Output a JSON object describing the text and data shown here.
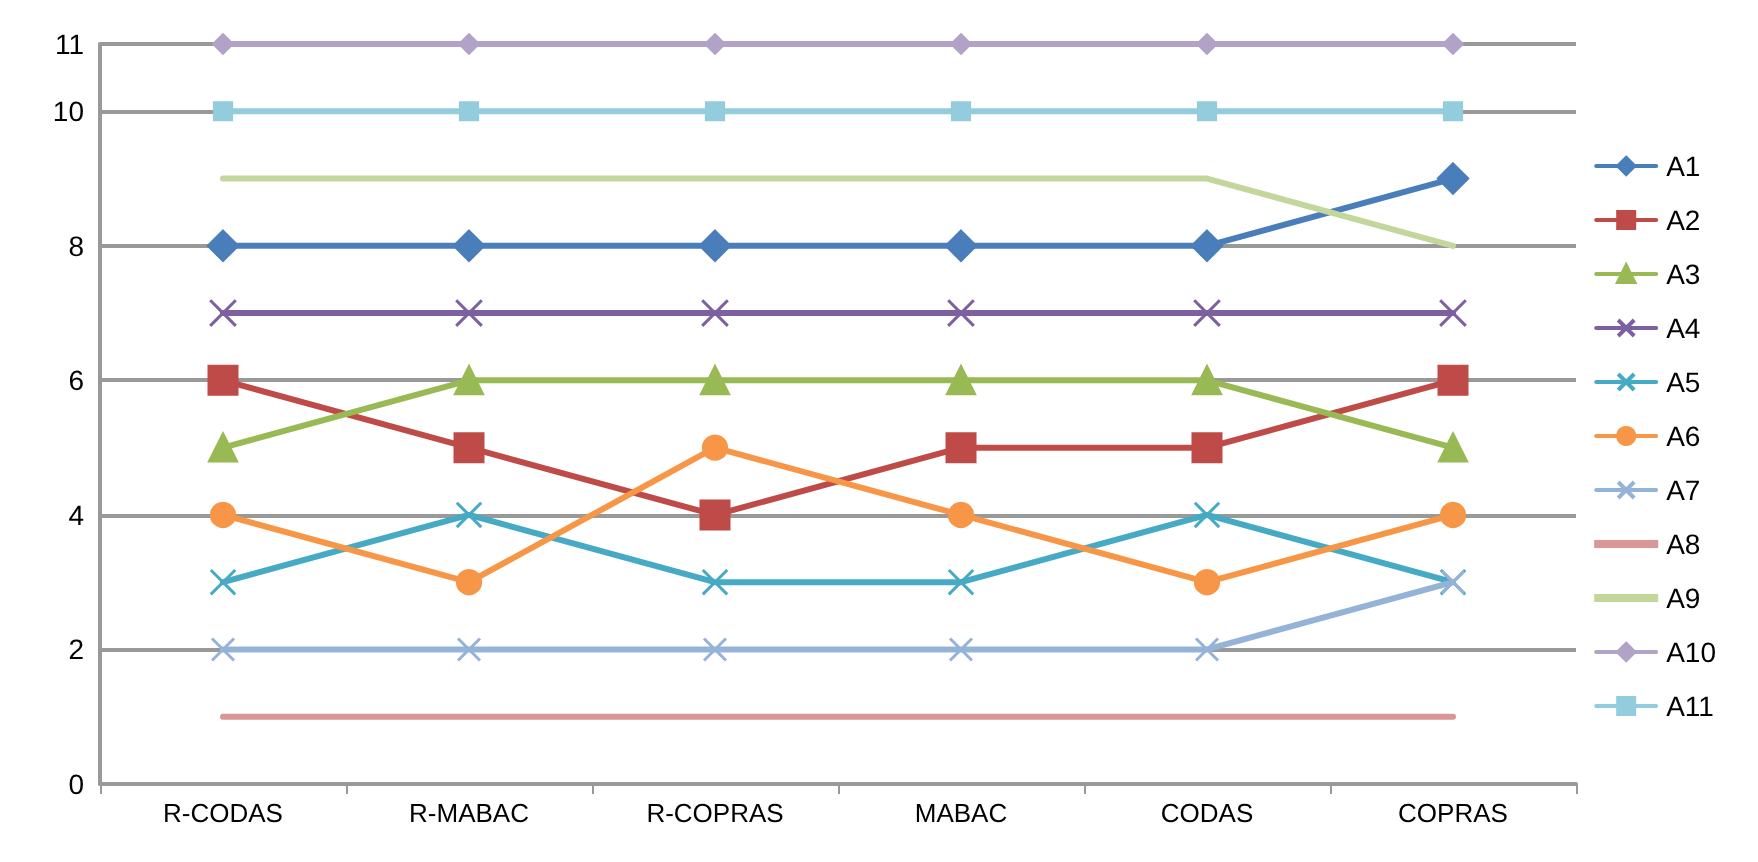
{
  "chart_data": {
    "type": "line",
    "categories": [
      "R-CODAS",
      "R-MABAC",
      "R-COPRAS",
      "MABAC",
      "CODAS",
      "COPRAS"
    ],
    "ylim": [
      0,
      11
    ],
    "yticks": [
      0,
      2,
      4,
      6,
      8,
      10,
      11
    ],
    "grid": "y",
    "legend": "right",
    "series": [
      {
        "name": "A1",
        "color": "#4a7ebb",
        "marker": "diamond",
        "values": [
          8,
          8,
          8,
          8,
          8,
          9
        ]
      },
      {
        "name": "A2",
        "color": "#be4b48",
        "marker": "square",
        "values": [
          6,
          5,
          4,
          5,
          5,
          6
        ]
      },
      {
        "name": "A3",
        "color": "#98b954",
        "marker": "triangle",
        "values": [
          5,
          6,
          6,
          6,
          6,
          5
        ]
      },
      {
        "name": "A4",
        "color": "#7d60a0",
        "marker": "cross",
        "values": [
          7,
          7,
          7,
          7,
          7,
          7
        ]
      },
      {
        "name": "A5",
        "color": "#46aac5",
        "marker": "cross",
        "values": [
          3,
          4,
          3,
          3,
          4,
          3
        ]
      },
      {
        "name": "A6",
        "color": "#f79646",
        "marker": "circle",
        "values": [
          4,
          3,
          5,
          4,
          3,
          4
        ]
      },
      {
        "name": "A7",
        "color": "#95b3d7",
        "marker": "cross",
        "values": [
          2,
          2,
          2,
          2,
          2,
          3
        ]
      },
      {
        "name": "A8",
        "color": "#d99694",
        "marker": "none",
        "values": [
          1,
          1,
          1,
          1,
          1,
          1
        ]
      },
      {
        "name": "A9",
        "color": "#c3d69b",
        "marker": "none",
        "values": [
          9,
          9,
          9,
          9,
          9,
          8
        ]
      },
      {
        "name": "A10",
        "color": "#b3a2c7",
        "marker": "diamond",
        "values": [
          11,
          11,
          11,
          11,
          11,
          11
        ]
      },
      {
        "name": "A11",
        "color": "#93cddd",
        "marker": "square",
        "values": [
          10,
          10,
          10,
          10,
          10,
          10
        ]
      }
    ]
  }
}
